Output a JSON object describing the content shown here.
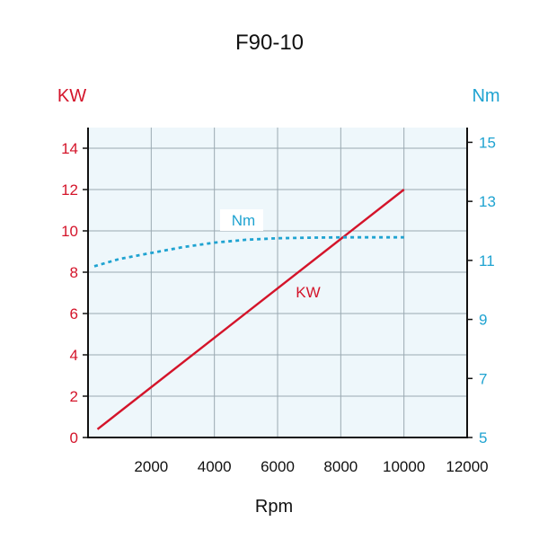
{
  "chart_data": {
    "type": "line",
    "title": "F90-10",
    "xlabel": "Rpm",
    "ylabel_left": "KW",
    "ylabel_right": "Nm",
    "xlim": [
      0,
      12000
    ],
    "ylim_left": [
      0,
      15
    ],
    "ylim_right": [
      5,
      15.5
    ],
    "x_ticks": [
      2000,
      4000,
      6000,
      8000,
      10000,
      12000
    ],
    "y_left_ticks": [
      0,
      2,
      4,
      6,
      8,
      10,
      12,
      14
    ],
    "y_right_ticks": [
      5,
      7,
      9,
      11,
      13,
      15
    ],
    "grid": true,
    "colors": {
      "kw": "#d4142a",
      "nm": "#1fa3d1",
      "plot_bg": "#eef7fb",
      "grid": "#9aa9b2"
    },
    "series": [
      {
        "name": "KW",
        "axis": "left",
        "style": "solid",
        "x": [
          300,
          10000
        ],
        "y": [
          0.4,
          12.0
        ]
      },
      {
        "name": "Nm",
        "axis": "right",
        "style": "dashed",
        "x": [
          200,
          1000,
          2000,
          3000,
          4000,
          5000,
          6000,
          7000,
          8000,
          9000,
          10000,
          10000
        ],
        "y": [
          10.8,
          11.05,
          11.25,
          11.45,
          11.6,
          11.7,
          11.75,
          11.77,
          11.78,
          11.78,
          11.78,
          11.78
        ]
      }
    ]
  }
}
